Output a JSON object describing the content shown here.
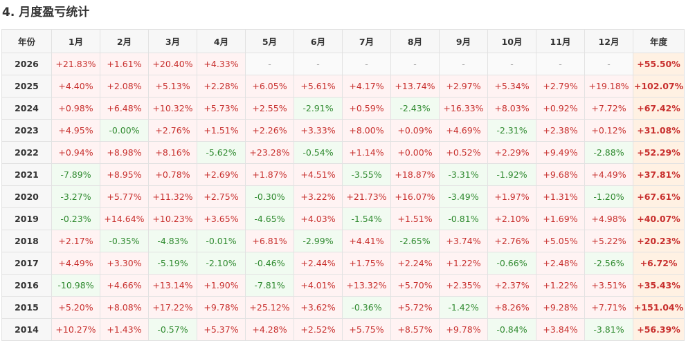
{
  "title": "4. 月度盈亏统计",
  "columns": [
    "年份",
    "1月",
    "2月",
    "3月",
    "4月",
    "5月",
    "6月",
    "7月",
    "8月",
    "9月",
    "10月",
    "11月",
    "12月",
    "年度"
  ],
  "rows": [
    {
      "year": "2026",
      "months": [
        "+21.83%",
        "+1.61%",
        "+20.40%",
        "+4.33%",
        "-",
        "-",
        "-",
        "-",
        "-",
        "-",
        "-",
        "-"
      ],
      "annual": "+55.50%"
    },
    {
      "year": "2025",
      "months": [
        "+4.40%",
        "+2.08%",
        "+5.13%",
        "+2.28%",
        "+6.05%",
        "+5.61%",
        "+4.17%",
        "+13.74%",
        "+2.97%",
        "+5.34%",
        "+2.79%",
        "+19.18%"
      ],
      "annual": "+102.07%"
    },
    {
      "year": "2024",
      "months": [
        "+0.98%",
        "+6.48%",
        "+10.32%",
        "+5.73%",
        "+2.55%",
        "-2.91%",
        "+0.59%",
        "-2.43%",
        "+16.33%",
        "+8.03%",
        "+0.92%",
        "+7.72%"
      ],
      "annual": "+67.42%"
    },
    {
      "year": "2023",
      "months": [
        "+4.95%",
        "-0.00%",
        "+2.76%",
        "+1.51%",
        "+2.26%",
        "+3.33%",
        "+8.00%",
        "+0.09%",
        "+4.69%",
        "-2.31%",
        "+2.38%",
        "+0.12%"
      ],
      "annual": "+31.08%"
    },
    {
      "year": "2022",
      "months": [
        "+0.94%",
        "+8.98%",
        "+8.16%",
        "-5.62%",
        "+23.28%",
        "-0.54%",
        "+1.14%",
        "+0.00%",
        "+0.52%",
        "+2.29%",
        "+9.49%",
        "-2.88%"
      ],
      "annual": "+52.29%"
    },
    {
      "year": "2021",
      "months": [
        "-7.89%",
        "+8.95%",
        "+0.78%",
        "+2.69%",
        "+1.87%",
        "+4.51%",
        "-3.55%",
        "+18.87%",
        "-3.31%",
        "-1.92%",
        "+9.68%",
        "+4.49%"
      ],
      "annual": "+37.81%"
    },
    {
      "year": "2020",
      "months": [
        "-3.27%",
        "+5.77%",
        "+11.32%",
        "+2.75%",
        "-0.30%",
        "+3.22%",
        "+21.73%",
        "+16.07%",
        "-3.49%",
        "+1.97%",
        "+1.31%",
        "-1.20%"
      ],
      "annual": "+67.61%"
    },
    {
      "year": "2019",
      "months": [
        "-0.23%",
        "+14.64%",
        "+10.23%",
        "+3.65%",
        "-4.65%",
        "+4.03%",
        "-1.54%",
        "+1.51%",
        "-0.81%",
        "+2.10%",
        "+1.69%",
        "+4.98%"
      ],
      "annual": "+40.07%"
    },
    {
      "year": "2018",
      "months": [
        "+2.17%",
        "-0.35%",
        "-4.83%",
        "-0.01%",
        "+6.81%",
        "-2.99%",
        "+4.41%",
        "-2.65%",
        "+3.74%",
        "+2.76%",
        "+5.05%",
        "+5.22%"
      ],
      "annual": "+20.23%"
    },
    {
      "year": "2017",
      "months": [
        "+4.49%",
        "+3.30%",
        "-5.19%",
        "-2.10%",
        "-0.46%",
        "+2.44%",
        "+1.75%",
        "+2.24%",
        "+1.22%",
        "-0.66%",
        "+2.48%",
        "-2.56%"
      ],
      "annual": "+6.72%"
    },
    {
      "year": "2016",
      "months": [
        "-10.98%",
        "+4.66%",
        "+13.14%",
        "+1.90%",
        "-7.81%",
        "+4.01%",
        "+13.32%",
        "+5.70%",
        "+2.35%",
        "+2.37%",
        "+1.22%",
        "+3.51%"
      ],
      "annual": "+35.43%"
    },
    {
      "year": "2015",
      "months": [
        "+5.20%",
        "+8.08%",
        "+17.22%",
        "+9.78%",
        "+25.12%",
        "+3.62%",
        "-0.36%",
        "+5.72%",
        "-1.42%",
        "+8.26%",
        "+9.28%",
        "+7.71%"
      ],
      "annual": "+151.04%"
    },
    {
      "year": "2014",
      "months": [
        "+10.27%",
        "+1.43%",
        "-0.57%",
        "+5.37%",
        "+4.28%",
        "+2.52%",
        "+5.75%",
        "+8.57%",
        "+9.78%",
        "-0.84%",
        "+3.84%",
        "-3.81%"
      ],
      "annual": "+56.39%"
    }
  ]
}
